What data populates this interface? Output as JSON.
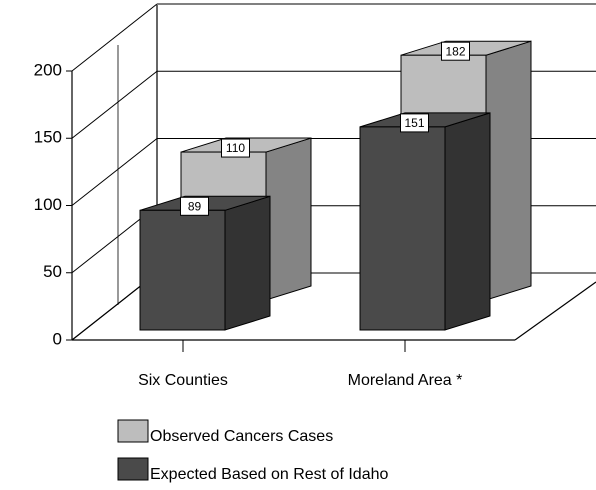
{
  "chart_data": {
    "type": "bar3d",
    "categories": [
      "Six Counties",
      "Moreland Area *"
    ],
    "series": [
      {
        "name": "Observed Cancers Cases",
        "color": "#bdbdbd",
        "values": [
          110,
          182
        ]
      },
      {
        "name": "Expected Based on Rest of Idaho",
        "color": "#4a4a4a",
        "values": [
          89,
          151
        ]
      }
    ],
    "ylim": [
      0,
      200
    ],
    "yticks": [
      0,
      50,
      100,
      150,
      200
    ],
    "grid": true
  }
}
